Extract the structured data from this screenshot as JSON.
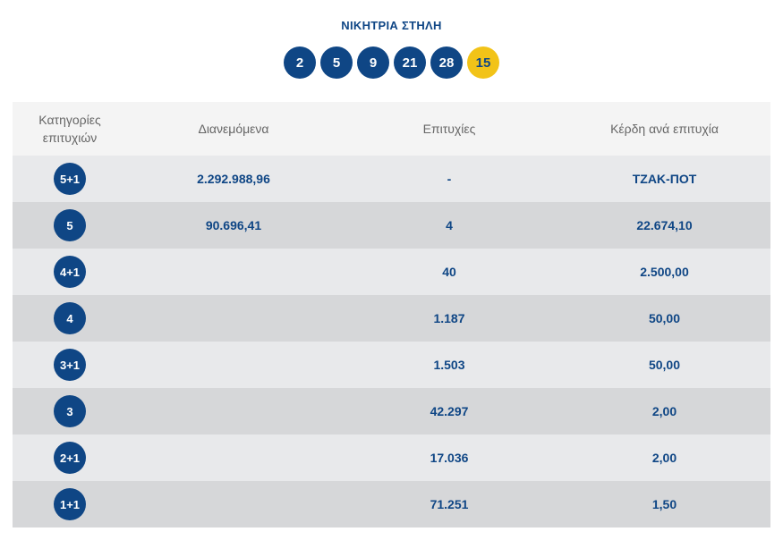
{
  "header": {
    "title": "ΝΙΚΗΤΡΙΑ ΣΤΗΛΗ",
    "numbers": [
      "2",
      "5",
      "9",
      "21",
      "28"
    ],
    "bonus": "15"
  },
  "table": {
    "columns": {
      "category": "Κατηγορίες επιτυχιών",
      "distributed": "Διανεμόμενα",
      "winners": "Επιτυχίες",
      "prize": "Κέρδη ανά επιτυχία"
    },
    "rows": [
      {
        "category": "5+1",
        "distributed": "2.292.988,96",
        "winners": "-",
        "prize": "ΤΖΑΚ-ΠΟΤ"
      },
      {
        "category": "5",
        "distributed": "90.696,41",
        "winners": "4",
        "prize": "22.674,10"
      },
      {
        "category": "4+1",
        "distributed": "",
        "winners": "40",
        "prize": "2.500,00"
      },
      {
        "category": "4",
        "distributed": "",
        "winners": "1.187",
        "prize": "50,00"
      },
      {
        "category": "3+1",
        "distributed": "",
        "winners": "1.503",
        "prize": "50,00"
      },
      {
        "category": "3",
        "distributed": "",
        "winners": "42.297",
        "prize": "2,00"
      },
      {
        "category": "2+1",
        "distributed": "",
        "winners": "17.036",
        "prize": "2,00"
      },
      {
        "category": "1+1",
        "distributed": "",
        "winners": "71.251",
        "prize": "1,50"
      }
    ]
  }
}
